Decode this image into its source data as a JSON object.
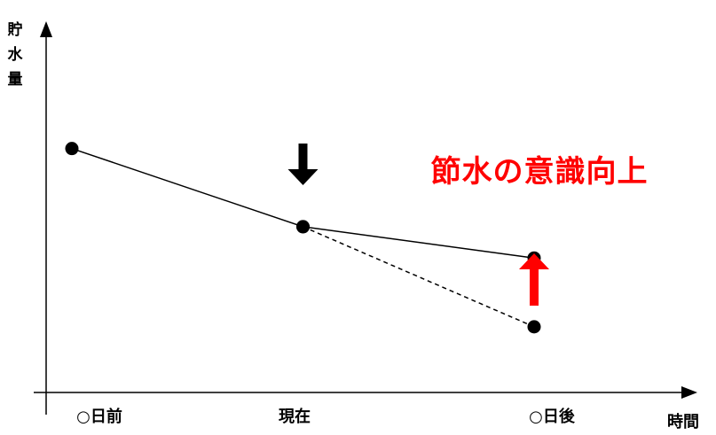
{
  "chart_data": {
    "type": "line",
    "xlabel": "時間",
    "ylabel": "貯水量",
    "categories": [
      "○日前",
      "現在",
      "○日後"
    ],
    "xlim": [
      0,
      2.2
    ],
    "ylim": [
      0,
      100
    ],
    "series": [
      {
        "style": "solid",
        "points": [
          {
            "x": 0,
            "y": 78
          },
          {
            "x": 1,
            "y": 53
          },
          {
            "x": 2,
            "y": 43
          }
        ]
      },
      {
        "style": "dashed",
        "points": [
          {
            "x": 1,
            "y": 53
          },
          {
            "x": 2,
            "y": 21
          }
        ]
      }
    ],
    "annotations": [
      {
        "text": "節水の意識向上",
        "color": "#ff0000"
      }
    ],
    "markers": [
      {
        "name": "black-down-arrow",
        "color": "#000000",
        "at_x": 1
      },
      {
        "name": "red-up-arrow",
        "color": "#ff0000",
        "at_x": 2
      }
    ],
    "grid": false,
    "legend": "none"
  }
}
